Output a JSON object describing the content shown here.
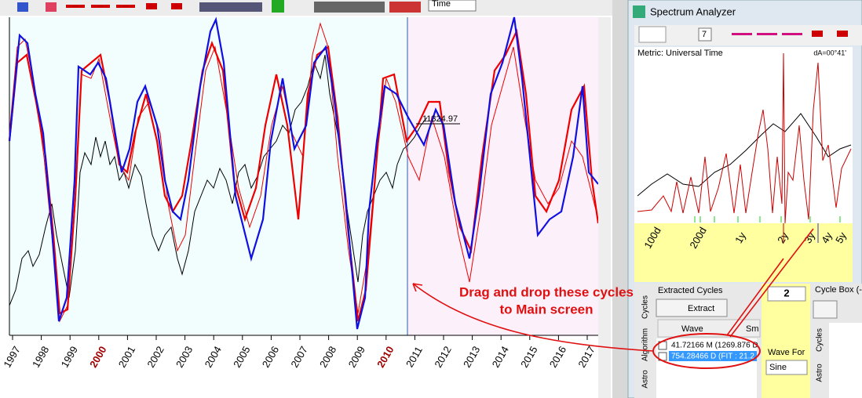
{
  "toolbar": {
    "time_select": "Time"
  },
  "main_chart": {
    "price_label": "11324.97",
    "years": [
      "1997",
      "1998",
      "1999",
      "2000",
      "2001",
      "2002",
      "2003",
      "2004",
      "2005",
      "2006",
      "2007",
      "2008",
      "2009",
      "2010",
      "2011",
      "2012",
      "2013",
      "2014",
      "2015",
      "2016",
      "2017"
    ]
  },
  "spectrum_analyzer": {
    "title": "Spectrum Analyzer",
    "zoom_value": "7",
    "metric": "Metric: Universal Time",
    "delta": "dA=00°41'",
    "period_labels": [
      "100d",
      "200d",
      "1y",
      "2y",
      "3y",
      "4y",
      "5y"
    ],
    "extracted_cycles": {
      "title": "Extracted Cycles",
      "extract_button": "Extract",
      "columns": [
        "Wave",
        "Sm"
      ],
      "items": [
        "41.72166 M (1269.876 D",
        "754.28466 D (FIT : 21.2"
      ]
    },
    "count": "2",
    "tabs": [
      "Cycles",
      "Algorithm",
      "Astro"
    ],
    "cycle_box": {
      "title": "Cycle Box (->",
      "tabs": [
        "Cycles",
        "Astro"
      ],
      "wave_form": "Wave For",
      "wave_select": "Sine"
    }
  },
  "annotation": [
    "Drag and drop these cycles",
    "to Main screen"
  ]
}
